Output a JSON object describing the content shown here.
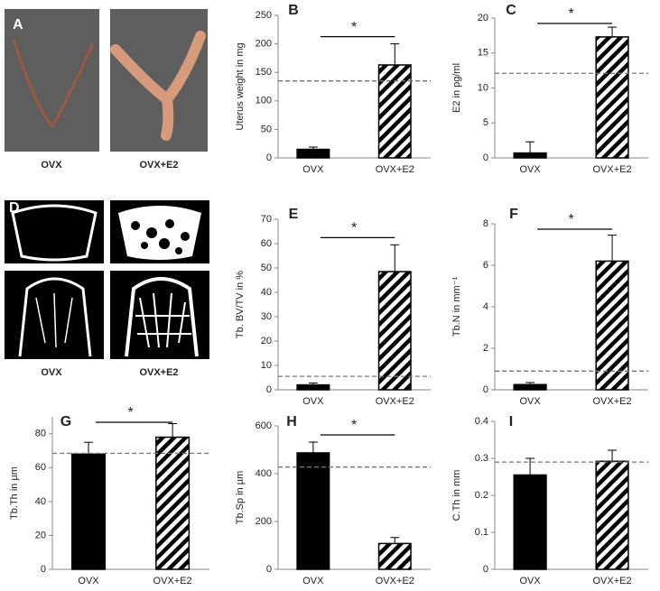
{
  "figure_images": [
    {
      "letter": "A",
      "captions": [
        "OVX",
        "OVX+E2"
      ]
    },
    {
      "letter": "D",
      "captions": [
        "OVX",
        "OVX+E2"
      ]
    }
  ],
  "chart_data": [
    {
      "type": "bar",
      "panel": "B",
      "y_label": "Uterus weight in mg",
      "categories": [
        "OVX",
        "OVX+E2"
      ],
      "values": [
        15,
        163
      ],
      "errors": [
        4,
        37
      ],
      "fills": [
        "solid",
        "hatched"
      ],
      "color": "#000000",
      "reference_line": 135,
      "significance": "*",
      "ylim": [
        0,
        250
      ],
      "yticks": [
        0,
        50,
        100,
        150,
        200,
        250
      ]
    },
    {
      "type": "bar",
      "panel": "C",
      "y_label": "E2 in pg/ml",
      "categories": [
        "OVX",
        "OVX+E2"
      ],
      "values": [
        0.7,
        17.3
      ],
      "errors": [
        1.6,
        1.4
      ],
      "fills": [
        "solid",
        "hatched"
      ],
      "color": "#000000",
      "reference_line": 12.1,
      "significance": "*",
      "ylim": [
        0,
        20
      ],
      "yticks": [
        0,
        5,
        10,
        15,
        20
      ]
    },
    {
      "type": "bar",
      "panel": "E",
      "y_label": "Tb. BV/TV in %",
      "categories": [
        "OVX",
        "OVX+E2"
      ],
      "values": [
        2,
        48.5
      ],
      "errors": [
        0.8,
        11
      ],
      "fills": [
        "solid",
        "hatched"
      ],
      "color": "#000000",
      "reference_line": 5.5,
      "significance": "*",
      "ylim": [
        0,
        70
      ],
      "yticks": [
        0,
        10,
        20,
        30,
        40,
        50,
        60,
        70
      ]
    },
    {
      "type": "bar",
      "panel": "F",
      "y_label": "Tb.N  in mm⁻¹",
      "categories": [
        "OVX",
        "OVX+E2"
      ],
      "values": [
        0.25,
        6.2
      ],
      "errors": [
        0.1,
        1.25
      ],
      "fills": [
        "solid",
        "hatched"
      ],
      "color": "#000000",
      "reference_line": 0.9,
      "significance": "*",
      "ylim": [
        0,
        8
      ],
      "yticks": [
        0,
        2,
        4,
        6,
        8
      ]
    },
    {
      "type": "bar",
      "panel": "G",
      "y_label": "Tb.Th  in µm",
      "categories": [
        "OVX",
        "OVX+E2"
      ],
      "values": [
        68,
        78
      ],
      "errors": [
        7,
        8
      ],
      "fills": [
        "solid",
        "hatched"
      ],
      "color": "#000000",
      "reference_line": 68.5,
      "significance": "*",
      "ylim": [
        0,
        90
      ],
      "yticks": [
        0,
        20,
        40,
        60,
        80
      ]
    },
    {
      "type": "bar",
      "panel": "H",
      "y_label": "Tb.Sp  in µm",
      "categories": [
        "OVX",
        "OVX+E2"
      ],
      "values": [
        487,
        108
      ],
      "errors": [
        45,
        25
      ],
      "fills": [
        "solid",
        "hatched"
      ],
      "color": "#000000",
      "reference_line": 428,
      "significance": "*",
      "ylim": [
        0,
        600
      ],
      "yticks": [
        0,
        200,
        400,
        600
      ]
    },
    {
      "type": "bar",
      "panel": "I",
      "y_label": "C.Th  in mm",
      "categories": [
        "OVX",
        "OVX+E2"
      ],
      "values": [
        0.255,
        0.292
      ],
      "errors": [
        0.045,
        0.03
      ],
      "fills": [
        "solid",
        "hatched"
      ],
      "color": "#000000",
      "reference_line": 0.29,
      "ylim": [
        0,
        0.4
      ],
      "yticks": [
        0,
        0.1,
        0.2,
        0.3,
        0.4
      ]
    }
  ]
}
